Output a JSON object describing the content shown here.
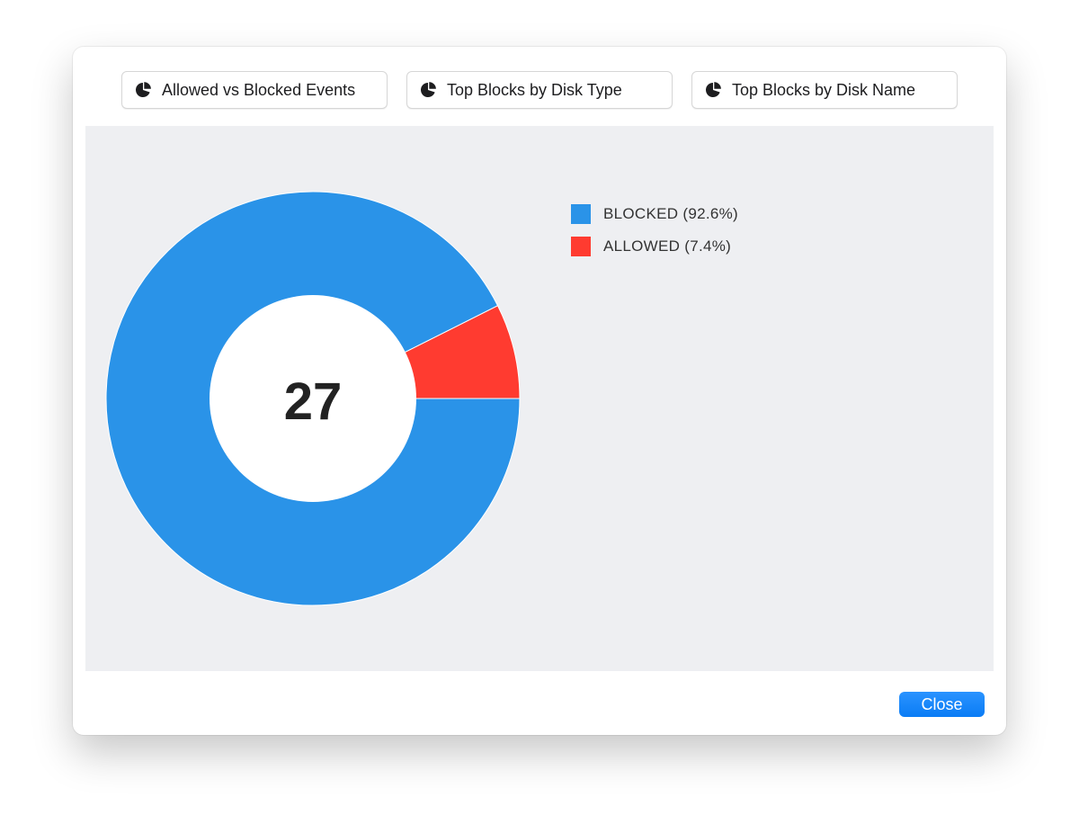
{
  "tabs": [
    {
      "label": "Allowed vs Blocked Events",
      "icon": "pie-chart-icon"
    },
    {
      "label": "Top Blocks by Disk Type",
      "icon": "pie-chart-icon"
    },
    {
      "label": "Top Blocks by Disk Name",
      "icon": "pie-chart-icon"
    }
  ],
  "chart_data": {
    "type": "pie",
    "variant": "donut",
    "center_label": "27",
    "slices": [
      {
        "name": "BLOCKED",
        "value": 25,
        "percent": 92.6,
        "color": "#2a93e8"
      },
      {
        "name": "ALLOWED",
        "value": 2,
        "percent": 7.4,
        "color": "#ff3b30"
      }
    ],
    "legend": {
      "placement": "top-right",
      "entries": [
        "BLOCKED (92.6%)",
        "ALLOWED (7.4%)"
      ]
    }
  },
  "footer": {
    "close_label": "Close"
  }
}
